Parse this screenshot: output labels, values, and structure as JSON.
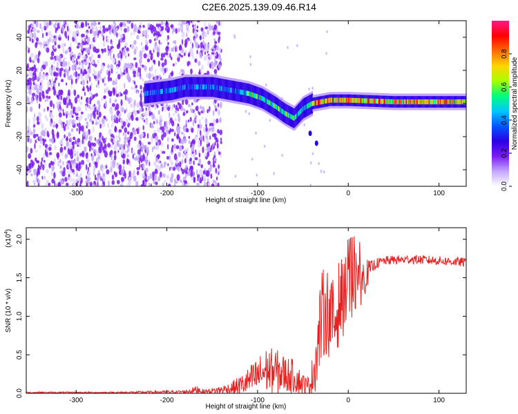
{
  "title": "C2E6.2025.139.09.46.R14",
  "colors": {
    "spec_bg": "#ffffff",
    "snr_line": "#e8201f",
    "colormap": [
      "#ffffff",
      "#c3a6ff",
      "#7a1cf2",
      "#2b00e6",
      "#0057ff",
      "#00c8ff",
      "#00ff7a",
      "#a8ff00",
      "#ffd400",
      "#ff6a00",
      "#ff0000",
      "#ff1a8a"
    ]
  },
  "chart_data": [
    {
      "type": "heatmap",
      "name": "spectrogram",
      "xlabel": "Height of straight line (km)",
      "ylabel": "Frequency (Hz)",
      "xlim": [
        -355,
        130
      ],
      "ylim": [
        -50,
        50
      ],
      "xticks": [
        -300,
        -200,
        -100,
        0,
        100
      ],
      "yticks": [
        -40,
        -20,
        0,
        20,
        40
      ],
      "colorbar": {
        "label": "Normalized spectral amplitude",
        "range": [
          0.0,
          1.0
        ],
        "ticks": [
          "0.0",
          "0.2",
          "0.4",
          "0.6",
          "0.8"
        ],
        "tick_values": [
          0.0,
          0.2,
          0.4,
          0.6,
          0.8
        ]
      },
      "noise_region_x": [
        -355,
        -140
      ],
      "center_frequency_trace": [
        {
          "x": -225,
          "y": 6
        },
        {
          "x": -195,
          "y": 8
        },
        {
          "x": -180,
          "y": 10
        },
        {
          "x": -150,
          "y": 10
        },
        {
          "x": -130,
          "y": 8
        },
        {
          "x": -110,
          "y": 6
        },
        {
          "x": -95,
          "y": 3
        },
        {
          "x": -80,
          "y": -2
        },
        {
          "x": -70,
          "y": -6
        },
        {
          "x": -60,
          "y": -9
        },
        {
          "x": -50,
          "y": -3
        },
        {
          "x": -40,
          "y": 0
        },
        {
          "x": -20,
          "y": 2
        },
        {
          "x": 0,
          "y": 2
        },
        {
          "x": 50,
          "y": 1
        },
        {
          "x": 130,
          "y": 1
        }
      ],
      "grid": false
    },
    {
      "type": "line",
      "name": "snr",
      "xlabel": "Height of straight line (km)",
      "ylabel": "SNR (10 * v/v)",
      "exponent_label": "(x10",
      "exponent": "4",
      "exponent_close": ")",
      "xlim": [
        -355,
        130
      ],
      "ylim": [
        0,
        2.15
      ],
      "xticks": [
        -300,
        -200,
        -100,
        0,
        100
      ],
      "yticks": [
        0.0,
        0.5,
        1.0,
        1.5,
        2.0
      ],
      "ytick_labels": [
        "0.0",
        "0.5",
        "1.0",
        "1.5",
        "2.0"
      ],
      "series": [
        {
          "x": [
            -355,
            -260,
            -180,
            -165,
            -160,
            -150,
            -130,
            -115,
            -100,
            -90,
            -80,
            -70,
            -60,
            -50,
            -45,
            -40,
            -35,
            -30,
            -25,
            -20,
            -15,
            -10,
            -5,
            0,
            5,
            10,
            15,
            20,
            25,
            30,
            40,
            50,
            70,
            100,
            130
          ],
          "y": [
            0.01,
            0.01,
            0.02,
            0.05,
            0.02,
            0.03,
            0.06,
            0.12,
            0.22,
            0.3,
            0.28,
            0.25,
            0.22,
            0.12,
            0.08,
            0.2,
            0.5,
            0.95,
            1.1,
            1.0,
            0.9,
            1.2,
            1.25,
            1.3,
            1.4,
            1.5,
            1.45,
            1.55,
            1.62,
            1.68,
            1.72,
            1.73,
            1.74,
            1.72,
            1.7
          ],
          "noise_amplitude": [
            0.01,
            0.01,
            0.02,
            0.06,
            0.03,
            0.04,
            0.08,
            0.15,
            0.25,
            0.3,
            0.3,
            0.25,
            0.22,
            0.15,
            0.12,
            0.25,
            0.45,
            0.6,
            0.6,
            0.55,
            0.55,
            0.55,
            0.5,
            0.5,
            0.45,
            0.4,
            0.3,
            0.2,
            0.1,
            0.07,
            0.06,
            0.06,
            0.06,
            0.06,
            0.06
          ]
        }
      ],
      "grid": false
    }
  ]
}
